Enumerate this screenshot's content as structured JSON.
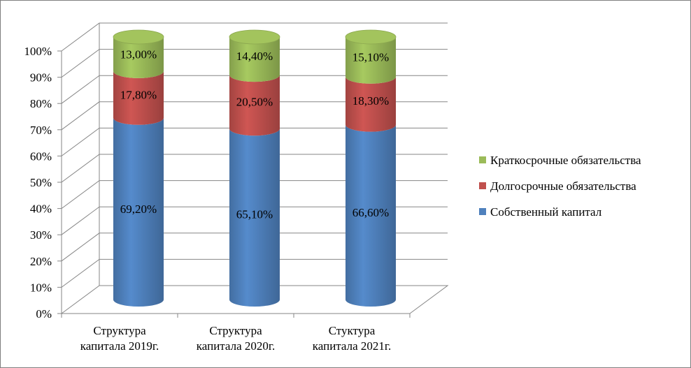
{
  "chart_data": {
    "type": "bar",
    "stacked": true,
    "percent_stacked": true,
    "style": "3d-cylinder",
    "categories": [
      "Структура капитала 2019г.",
      "Структура капитала 2020г.",
      "Стуктура капитала 2021г."
    ],
    "category_lines": [
      [
        "Структура",
        "капитала 2019г."
      ],
      [
        "Структура",
        "капитала 2020г."
      ],
      [
        "Стуктура",
        "капитала 2021г."
      ]
    ],
    "series": [
      {
        "name": "Собственный капитал",
        "values": [
          69.2,
          65.1,
          66.6
        ],
        "labels": [
          "69,20%",
          "65,10%",
          "66,60%"
        ],
        "color": "#4f81bd"
      },
      {
        "name": "Долгосрочные обязательства",
        "values": [
          17.8,
          20.5,
          18.3
        ],
        "labels": [
          "17,80%",
          "20,50%",
          "18,30%"
        ],
        "color": "#c0504d"
      },
      {
        "name": "Краткосрочные обязательства",
        "values": [
          13.0,
          14.4,
          15.1
        ],
        "labels": [
          "13,00%",
          "14,40%",
          "15,10%"
        ],
        "color": "#9bbb59"
      }
    ],
    "ylim": [
      0,
      100
    ],
    "y_ticks": [
      "0%",
      "10%",
      "20%",
      "30%",
      "40%",
      "50%",
      "60%",
      "70%",
      "80%",
      "90%",
      "100%"
    ],
    "grid": true,
    "legend_position": "right",
    "legend_order": [
      "Краткосрочные обязательства",
      "Долгосрочные обязательства",
      "Собственный капитал"
    ],
    "title": "",
    "xlabel": "",
    "ylabel": ""
  }
}
